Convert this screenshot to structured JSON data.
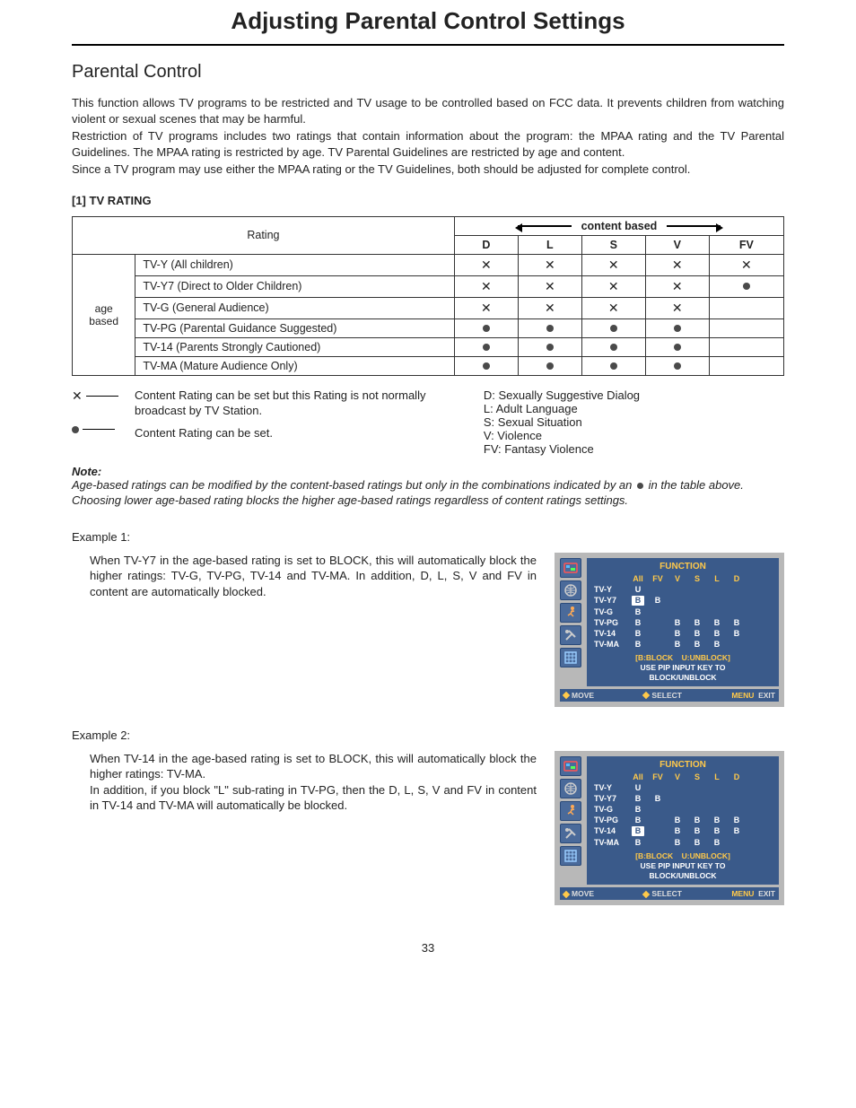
{
  "page": {
    "main_title": "Adjusting Parental Control Settings",
    "section_title": "Parental Control",
    "page_number": "33"
  },
  "intro": {
    "p1": "This function allows TV programs to be restricted and TV usage to be controlled based on FCC data. It prevents children from watching violent or sexual scenes that may be harmful.",
    "p2": "Restriction of TV programs includes two ratings that contain information about the program: the MPAA rating and the TV Parental Guidelines. The MPAA rating is restricted by age. TV Parental Guidelines are restricted by age and content.",
    "p3": "Since a TV program may use either the MPAA rating or the TV Guidelines, both should be adjusted for complete control."
  },
  "tv_rating": {
    "heading": "[1] TV RATING",
    "row_header": "Rating",
    "content_based_label": "content based",
    "age_based_label": "age\nbased",
    "columns": [
      "D",
      "L",
      "S",
      "V",
      "FV"
    ],
    "rows": [
      {
        "label": "TV-Y (All children)",
        "cells": [
          "x",
          "x",
          "x",
          "x",
          "x"
        ]
      },
      {
        "label": "TV-Y7 (Direct to Older Children)",
        "cells": [
          "x",
          "x",
          "x",
          "x",
          "dot"
        ]
      },
      {
        "label": "TV-G (General Audience)",
        "cells": [
          "x",
          "x",
          "x",
          "x",
          ""
        ]
      },
      {
        "label": "TV-PG (Parental Guidance Suggested)",
        "cells": [
          "dot",
          "dot",
          "dot",
          "dot",
          ""
        ]
      },
      {
        "label": "TV-14 (Parents Strongly Cautioned)",
        "cells": [
          "dot",
          "dot",
          "dot",
          "dot",
          ""
        ]
      },
      {
        "label": "TV-MA (Mature Audience Only)",
        "cells": [
          "dot",
          "dot",
          "dot",
          "dot",
          ""
        ]
      }
    ]
  },
  "legend": {
    "x_text": "Content Rating can be set but this Rating is not normally broadcast by TV Station.",
    "dot_text": "Content Rating can be set.",
    "defs": {
      "d": "D: Sexually Suggestive Dialog",
      "l": "L: Adult  Language",
      "s": "S: Sexual Situation",
      "v": "V: Violence",
      "fv": "FV: Fantasy Violence"
    }
  },
  "note": {
    "label": "Note:",
    "line1a": "Age-based ratings can be modified by the content-based ratings but only in the combinations indicated by an",
    "line1b": "in the table above.",
    "line2": "Choosing lower age-based rating blocks the higher age-based ratings regardless of content ratings settings."
  },
  "example1": {
    "title": "Example 1:",
    "text": "When TV-Y7 in the age-based rating is set to BLOCK, this will automatically block the higher ratings: TV-G, TV-PG, TV-14 and TV-MA. In addition, D, L, S, V and FV in content are automatically blocked.",
    "osd": {
      "title": "FUNCTION",
      "cols": [
        "All",
        "FV",
        "V",
        "S",
        "L",
        "D"
      ],
      "rows": [
        {
          "label": "TV-Y",
          "cells": [
            "U",
            "",
            "",
            "",
            "",
            ""
          ],
          "sel": -1
        },
        {
          "label": "TV-Y7",
          "cells": [
            "B",
            "B",
            "",
            "",
            "",
            ""
          ],
          "sel": 0
        },
        {
          "label": "TV-G",
          "cells": [
            "B",
            "",
            "",
            "",
            "",
            ""
          ],
          "sel": -1
        },
        {
          "label": "TV-PG",
          "cells": [
            "B",
            "",
            "B",
            "B",
            "B",
            "B"
          ],
          "sel": -1
        },
        {
          "label": "TV-14",
          "cells": [
            "B",
            "",
            "B",
            "B",
            "B",
            "B"
          ],
          "sel": -1
        },
        {
          "label": "TV-MA",
          "cells": [
            "B",
            "",
            "B",
            "B",
            "B",
            ""
          ],
          "sel": -1
        }
      ],
      "footer1a": "[B:BLOCK",
      "footer1b": "U:UNBLOCK]",
      "footer2": "USE  PIP INPUT  KEY  TO",
      "footer3": "BLOCK/UNBLOCK",
      "nav": {
        "move": "MOVE",
        "select": "SELECT",
        "menu": "MENU",
        "exit": "EXIT"
      }
    }
  },
  "example2": {
    "title": "Example 2:",
    "text1": "When TV-14 in the age-based rating is set to BLOCK, this will automatically block the higher ratings: TV-MA.",
    "text2": "In addition, if you block \"L\" sub-rating in TV-PG, then the D, L, S, V and FV in content in TV-14 and TV-MA will automatically be blocked.",
    "osd": {
      "title": "FUNCTION",
      "cols": [
        "All",
        "FV",
        "V",
        "S",
        "L",
        "D"
      ],
      "rows": [
        {
          "label": "TV-Y",
          "cells": [
            "U",
            "",
            "",
            "",
            "",
            ""
          ],
          "sel": -1
        },
        {
          "label": "TV-Y7",
          "cells": [
            "B",
            "B",
            "",
            "",
            "",
            ""
          ],
          "sel": -1
        },
        {
          "label": "TV-G",
          "cells": [
            "B",
            "",
            "",
            "",
            "",
            ""
          ],
          "sel": -1
        },
        {
          "label": "TV-PG",
          "cells": [
            "B",
            "",
            "B",
            "B",
            "B",
            "B"
          ],
          "sel": -1
        },
        {
          "label": "TV-14",
          "cells": [
            "B",
            "",
            "B",
            "B",
            "B",
            "B"
          ],
          "sel": 0
        },
        {
          "label": "TV-MA",
          "cells": [
            "B",
            "",
            "B",
            "B",
            "B",
            ""
          ],
          "sel": -1
        }
      ],
      "footer1a": "[B:BLOCK",
      "footer1b": "U:UNBLOCK]",
      "footer2": "USE PIP INPUT  KEY  TO",
      "footer3": "BLOCK/UNBLOCK",
      "nav": {
        "move": "MOVE",
        "select": "SELECT",
        "menu": "MENU",
        "exit": "EXIT"
      }
    }
  },
  "colors": {
    "osd_bg": "#b8b8b8",
    "osd_panel": "#3a5a8a",
    "osd_icon": "#4a6a9a",
    "osd_accent": "#ffc94a"
  }
}
